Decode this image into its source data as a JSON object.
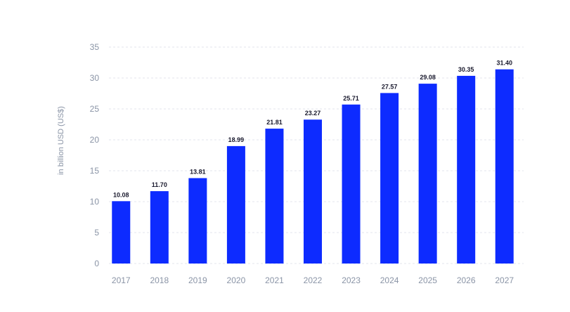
{
  "chart_data": {
    "type": "bar",
    "categories": [
      "2017",
      "2018",
      "2019",
      "2020",
      "2021",
      "2022",
      "2023",
      "2024",
      "2025",
      "2026",
      "2027"
    ],
    "values": [
      10.08,
      11.7,
      13.81,
      18.99,
      21.81,
      23.27,
      25.71,
      27.57,
      29.08,
      30.35,
      31.4
    ],
    "data_labels": [
      "10.08",
      "11.70",
      "13.81",
      "18.99",
      "21.81",
      "23.27",
      "25.71",
      "27.57",
      "29.08",
      "30.35",
      "31.40"
    ],
    "ylabel": "in billion USD (US$)",
    "xlabel": "",
    "ylim": [
      0,
      35
    ],
    "yticks": [
      "0",
      "5",
      "10",
      "15",
      "20",
      "25",
      "30",
      "35"
    ],
    "grid": true,
    "bar_color": "#0d2bff"
  }
}
